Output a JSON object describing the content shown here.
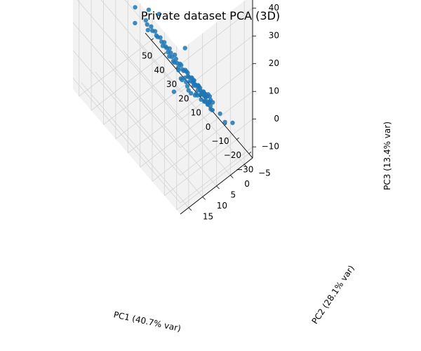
{
  "chart_data": {
    "type": "scatter",
    "title": "Private dataset PCA (3D)",
    "xlabel": "PC1 (40.7% var)",
    "ylabel": "PC2 (28.1% var)",
    "zlabel": "PC3 (13.4% var)",
    "x_ticks": [
      "−30",
      "−20",
      "−10",
      "0",
      "10",
      "20",
      "30",
      "40",
      "50"
    ],
    "y_ticks": [
      "−5",
      "0",
      "5",
      "10",
      "15"
    ],
    "z_ticks": [
      "−10",
      "0",
      "10",
      "20",
      "30",
      "40"
    ],
    "x_range": [
      -33,
      55
    ],
    "y_range": [
      -8,
      18
    ],
    "z_range": [
      -14,
      45
    ],
    "grid": true,
    "colors": {
      "points": "#1f77b4",
      "pane": "#f2f2f2",
      "grid": "#d3d3d3"
    },
    "series": [
      {
        "points": [
          [
            -30,
            15,
            42
          ],
          [
            52,
            -3,
            -5
          ],
          [
            46,
            -5,
            -6
          ],
          [
            18,
            7,
            25
          ],
          [
            20,
            11,
            28
          ],
          [
            14,
            5,
            24
          ],
          [
            -5,
            8,
            8
          ],
          [
            -28,
            -3,
            0
          ],
          [
            -24,
            -2,
            -1
          ],
          [
            -20,
            -2,
            0
          ],
          [
            -16,
            -1,
            0
          ],
          [
            -14,
            -2,
            1
          ],
          [
            -12,
            -1,
            0
          ],
          [
            -10,
            -1,
            0
          ],
          [
            -9,
            0,
            1
          ],
          [
            -8,
            -2,
            0
          ],
          [
            -7,
            -1,
            1
          ],
          [
            -6,
            -1,
            2
          ],
          [
            -5,
            0,
            1
          ],
          [
            -5,
            -2,
            0
          ],
          [
            -4,
            -1,
            1
          ],
          [
            -3,
            -1,
            2
          ],
          [
            -3,
            0,
            3
          ],
          [
            -2,
            -1,
            2
          ],
          [
            -2,
            -2,
            1
          ],
          [
            -1,
            -1,
            3
          ],
          [
            0,
            0,
            3
          ],
          [
            0,
            -1,
            2
          ],
          [
            1,
            0,
            4
          ],
          [
            1,
            -1,
            3
          ],
          [
            2,
            0,
            5
          ],
          [
            2,
            1,
            4
          ],
          [
            3,
            0,
            5
          ],
          [
            3,
            1,
            6
          ],
          [
            4,
            1,
            6
          ],
          [
            4,
            0,
            5
          ],
          [
            5,
            1,
            7
          ],
          [
            5,
            2,
            7
          ],
          [
            6,
            2,
            8
          ],
          [
            6,
            1,
            7
          ],
          [
            7,
            2,
            9
          ],
          [
            7,
            3,
            9
          ],
          [
            8,
            2,
            10
          ],
          [
            8,
            3,
            10
          ],
          [
            9,
            3,
            11
          ],
          [
            9,
            4,
            12
          ],
          [
            10,
            3,
            12
          ],
          [
            10,
            4,
            13
          ],
          [
            11,
            4,
            13
          ],
          [
            11,
            5,
            14
          ],
          [
            12,
            5,
            15
          ],
          [
            12,
            4,
            14
          ],
          [
            13,
            5,
            16
          ],
          [
            13,
            6,
            17
          ],
          [
            14,
            6,
            17
          ],
          [
            15,
            6,
            18
          ],
          [
            15,
            7,
            19
          ],
          [
            16,
            7,
            20
          ],
          [
            17,
            8,
            21
          ],
          [
            18,
            8,
            22
          ],
          [
            6,
            3,
            9
          ],
          [
            8,
            4,
            11
          ],
          [
            5,
            2,
            6
          ],
          [
            -3,
            -3,
            -2
          ],
          [
            -2,
            -4,
            -3
          ],
          [
            -1,
            -5,
            -5
          ],
          [
            0,
            -6,
            -7
          ],
          [
            -1,
            -5,
            -6
          ],
          [
            -2,
            -6,
            -8
          ],
          [
            -3,
            -6,
            -9
          ],
          [
            0,
            -7,
            -10
          ],
          [
            1,
            -6,
            -9
          ],
          [
            1,
            -7,
            -11
          ],
          [
            -1,
            -7,
            -12
          ],
          [
            2,
            -6,
            -10
          ],
          [
            -2,
            -3,
            -3
          ],
          [
            -1,
            -4,
            -4
          ],
          [
            -4,
            -3,
            -1
          ],
          [
            0,
            -5,
            -6
          ],
          [
            0,
            -3,
            -1
          ],
          [
            1,
            -4,
            -3
          ],
          [
            2,
            -4,
            -3
          ],
          [
            3,
            -3,
            -2
          ],
          [
            4,
            -3,
            -1
          ],
          [
            -6,
            -3,
            -1
          ],
          [
            -8,
            -3,
            0
          ],
          [
            -10,
            -3,
            -1
          ],
          [
            -7,
            -4,
            -2
          ],
          [
            -5,
            -4,
            -3
          ],
          [
            2,
            -2,
            0
          ],
          [
            3,
            -2,
            1
          ],
          [
            4,
            -1,
            2
          ],
          [
            0,
            1,
            2
          ],
          [
            -1,
            1,
            1
          ],
          [
            1,
            1,
            3
          ],
          [
            2,
            2,
            4
          ],
          [
            3,
            2,
            4
          ],
          [
            -4,
            0,
            0
          ],
          [
            -6,
            0,
            1
          ],
          [
            -3,
            1,
            1
          ]
        ]
      }
    ]
  }
}
